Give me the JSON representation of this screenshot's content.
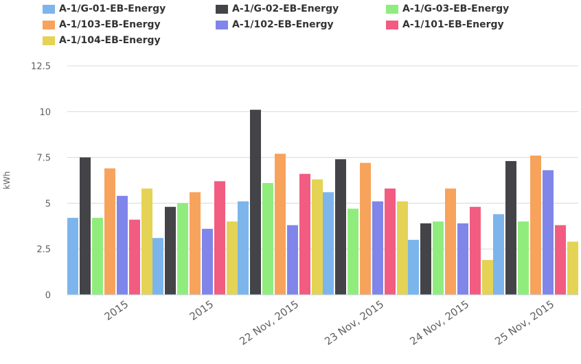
{
  "chart_data": {
    "type": "bar",
    "ylabel": "kWh",
    "xlabel": "",
    "ylim": [
      0,
      12.5
    ],
    "yticks": [
      "0",
      "2.5",
      "5",
      "7.5",
      "10",
      "12.5"
    ],
    "categories": [
      "2015",
      "2015",
      "22 Nov, 2015",
      "23 Nov, 2015",
      "24 Nov, 2015",
      "25 Nov, 2015"
    ],
    "legend_position": "top",
    "grid": true,
    "series": [
      {
        "name": "A-1/G-01-EB-Energy",
        "color": "#7cb5ec",
        "values": [
          4.2,
          3.1,
          5.1,
          5.6,
          3.0,
          4.4
        ]
      },
      {
        "name": "A-1/G-02-EB-Energy",
        "color": "#434348",
        "values": [
          7.5,
          4.8,
          10.1,
          7.4,
          3.9,
          7.3
        ]
      },
      {
        "name": "A-1/G-03-EB-Energy",
        "color": "#90ed7d",
        "values": [
          4.2,
          5.0,
          6.1,
          4.7,
          4.0,
          4.0
        ]
      },
      {
        "name": "A-1/103-EB-Energy",
        "color": "#f7a35c",
        "values": [
          6.9,
          5.6,
          7.7,
          7.2,
          5.8,
          7.6
        ]
      },
      {
        "name": "A-1/102-EB-Energy",
        "color": "#8085e9",
        "values": [
          5.4,
          3.6,
          3.8,
          5.1,
          3.9,
          6.8
        ]
      },
      {
        "name": "A-1/101-EB-Energy",
        "color": "#f15c80",
        "values": [
          4.1,
          6.2,
          6.6,
          5.8,
          4.8,
          3.8
        ]
      },
      {
        "name": "A-1/104-EB-Energy",
        "color": "#e4d354",
        "values": [
          5.8,
          4.0,
          6.3,
          5.1,
          1.9,
          2.9
        ]
      }
    ]
  }
}
